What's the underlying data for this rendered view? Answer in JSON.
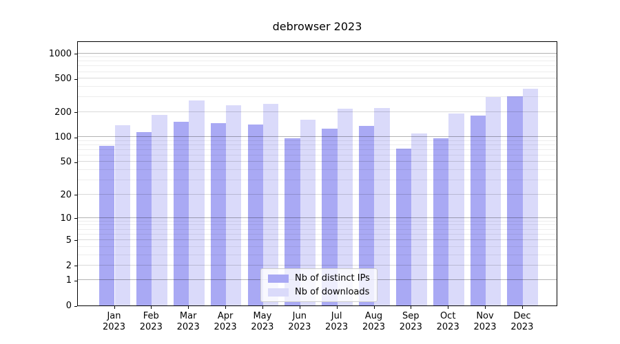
{
  "chart_data": {
    "type": "bar",
    "title": "debrowser 2023",
    "categories": [
      {
        "month": "Jan",
        "year": "2023"
      },
      {
        "month": "Feb",
        "year": "2023"
      },
      {
        "month": "Mar",
        "year": "2023"
      },
      {
        "month": "Apr",
        "year": "2023"
      },
      {
        "month": "May",
        "year": "2023"
      },
      {
        "month": "Jun",
        "year": "2023"
      },
      {
        "month": "Jul",
        "year": "2023"
      },
      {
        "month": "Aug",
        "year": "2023"
      },
      {
        "month": "Sep",
        "year": "2023"
      },
      {
        "month": "Oct",
        "year": "2023"
      },
      {
        "month": "Nov",
        "year": "2023"
      },
      {
        "month": "Dec",
        "year": "2023"
      }
    ],
    "series": [
      {
        "name": "Nb of distinct IPs",
        "color": "#a9a9f4",
        "values": [
          79,
          114,
          152,
          147,
          142,
          97,
          126,
          136,
          72,
          97,
          181,
          306
        ]
      },
      {
        "name": "Nb of downloads",
        "color": "#dadafa",
        "values": [
          138,
          186,
          273,
          240,
          251,
          161,
          217,
          223,
          110,
          190,
          300,
          380
        ]
      }
    ],
    "y_axis": {
      "scale": "log1p",
      "ticks": [
        0,
        1,
        2,
        5,
        10,
        20,
        50,
        100,
        200,
        500,
        1000
      ],
      "ylim": [
        0,
        1000
      ]
    },
    "grid": "on",
    "legend_position": "lower center"
  }
}
